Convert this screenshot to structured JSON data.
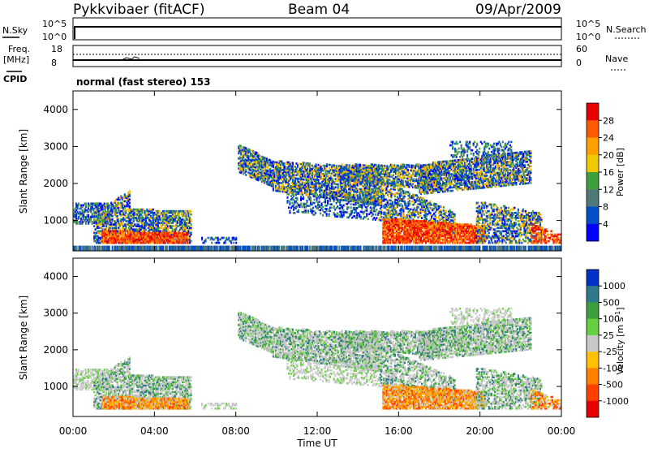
{
  "header": {
    "station": "Pykkvibaer (fitACF)",
    "beam": "Beam 04",
    "date": "09/Apr/2009"
  },
  "nsky_panel": {
    "left_label": "N.Sky",
    "right_label": "N.Search",
    "left_ticks": [
      "10^5",
      "10^0"
    ],
    "right_ticks": [
      "10^5",
      "10^0"
    ]
  },
  "freq_panel": {
    "left_label_1": "Freq.",
    "left_label_2": "[MHz]",
    "right_label": "Nave",
    "left_ticks": [
      "18",
      "8"
    ],
    "right_ticks": [
      "60",
      "0"
    ]
  },
  "cpid": {
    "label": "CPID",
    "mode": "normal (fast stereo) 153"
  },
  "chart_data": [
    {
      "type": "heatmap",
      "name_text": "Power",
      "ylabel": "Slant Range [km]",
      "ylim": [
        180,
        4500
      ],
      "yticks": [
        "1000",
        "2000",
        "3000",
        "4000"
      ],
      "xlabel": "",
      "colorbar_label": "Power [dB]",
      "colorbar_ticks": [
        "28",
        "24",
        "20",
        "16",
        "12",
        "8",
        "4"
      ],
      "colorbar_colors": [
        "#e60000",
        "#ff5a00",
        "#ffa000",
        "#f0c800",
        "#3ca03c",
        "#507878",
        "#0050c8",
        "#0000ff"
      ]
    },
    {
      "type": "heatmap",
      "name_text": "Velocity",
      "ylabel": "Slant Range [km]",
      "ylim": [
        180,
        4500
      ],
      "yticks": [
        "1000",
        "2000",
        "3000",
        "4000"
      ],
      "xlabel": "Time UT",
      "xticks": [
        "00:00",
        "04:00",
        "08:00",
        "12:00",
        "16:00",
        "20:00",
        "00:00"
      ],
      "colorbar_label": "Velocity [m s^-1]",
      "colorbar_ticks": [
        "1000",
        "500",
        "100",
        "25",
        "-25",
        "-100",
        "-500",
        "-1000"
      ],
      "colorbar_colors": [
        "#0030c8",
        "#2c7a8c",
        "#3ca03c",
        "#66d040",
        "#c8c8c8",
        "#ffc000",
        "#ff8000",
        "#ff4000",
        "#e60000"
      ]
    }
  ]
}
